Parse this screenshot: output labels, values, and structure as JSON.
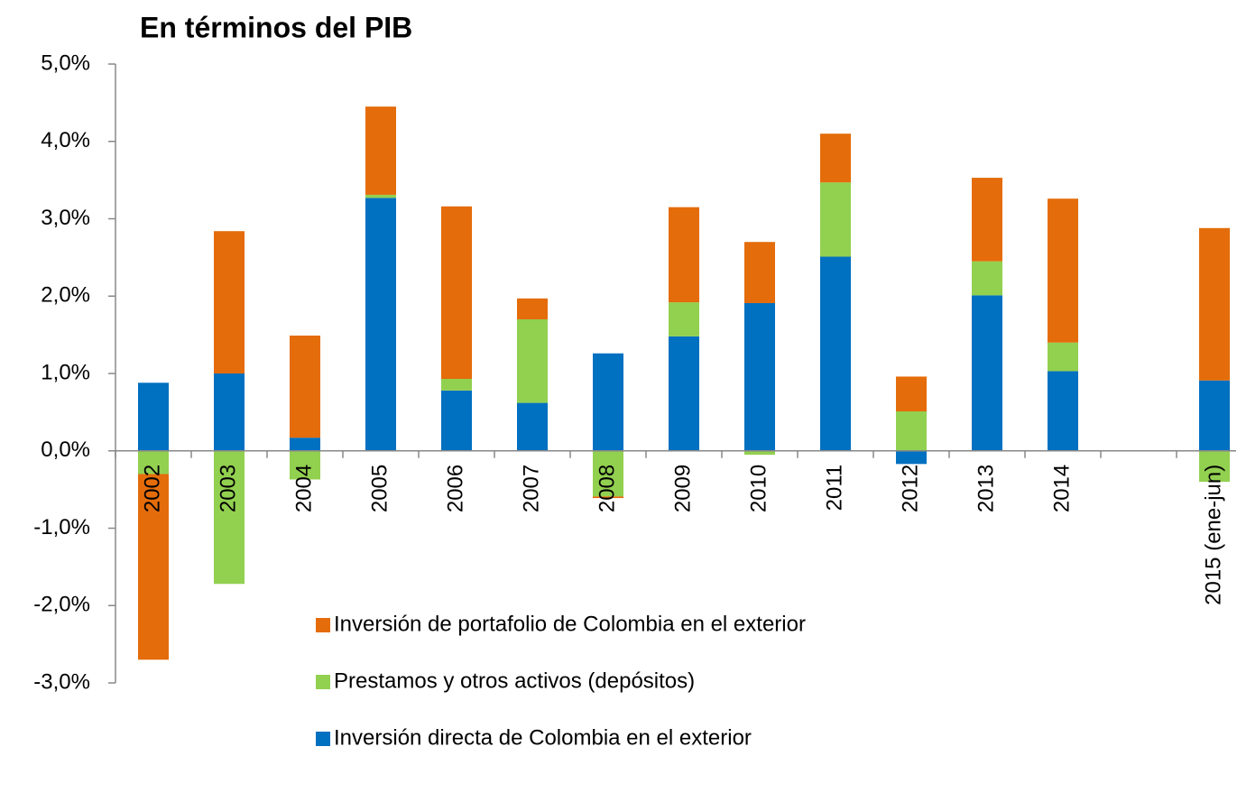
{
  "chart_data": {
    "type": "stacked-bar",
    "title": "En términos del PIB",
    "categories": [
      "2002",
      "2003",
      "2004",
      "2005",
      "2006",
      "2007",
      "2008",
      "2009",
      "2010",
      "2011",
      "2012",
      "2013",
      "2014",
      null,
      "2015 (ene-jun)"
    ],
    "series": [
      {
        "name": "Inversión directa de Colombia en el exterior",
        "color": "#0070c0",
        "values": [
          0.88,
          1.0,
          0.17,
          3.27,
          0.78,
          0.62,
          1.26,
          1.48,
          1.91,
          2.51,
          -0.17,
          2.01,
          1.03,
          null,
          0.91
        ]
      },
      {
        "name": "Prestamos y otros activos (depósitos)",
        "color": "#92d050",
        "values": [
          -0.3,
          -1.72,
          -0.37,
          0.04,
          0.15,
          1.08,
          -0.59,
          0.44,
          -0.05,
          0.96,
          0.51,
          0.44,
          0.37,
          null,
          -0.4
        ]
      },
      {
        "name": "Inversión de portafolio de Colombia en el exterior",
        "color": "#e46c0a",
        "values": [
          -2.4,
          1.84,
          1.32,
          1.14,
          2.23,
          0.27,
          -0.02,
          1.23,
          0.79,
          0.63,
          0.45,
          1.08,
          1.86,
          null,
          1.97
        ]
      }
    ],
    "ylim": [
      -3,
      5
    ],
    "yticks": [
      {
        "value": -3,
        "label": "-3,0%"
      },
      {
        "value": -2,
        "label": "-2,0%"
      },
      {
        "value": -1,
        "label": "-1,0%"
      },
      {
        "value": 0,
        "label": "0,0%"
      },
      {
        "value": 1,
        "label": "1,0%"
      },
      {
        "value": 2,
        "label": "2,0%"
      },
      {
        "value": 3,
        "label": "3,0%"
      },
      {
        "value": 4,
        "label": "4,0%"
      },
      {
        "value": 5,
        "label": "5,0%"
      }
    ],
    "grid": false
  }
}
